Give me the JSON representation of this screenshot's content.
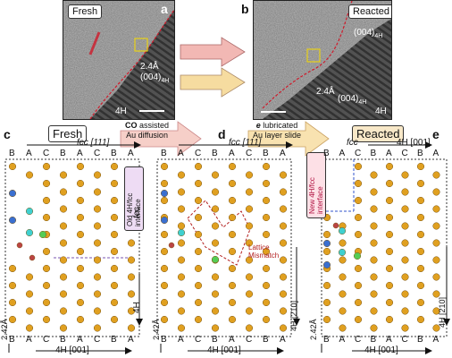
{
  "panel_letters": {
    "a": "a",
    "b": "b",
    "c": "c",
    "d": "d",
    "e": "e"
  },
  "tem_a": {
    "badge": "Fresh",
    "spacing": "2.4Å",
    "plane": "(004)",
    "plane_sub": "4H",
    "phase": "4H"
  },
  "tem_b": {
    "badge": "Reacted",
    "plane_top": "(004)",
    "plane_top_sub": "4H",
    "spacing": "2.4Å",
    "plane": "(004)",
    "plane_sub": "4H",
    "phase": "4H"
  },
  "process": {
    "step1_bold": "CO",
    "step1_rest": " assisted",
    "step1_line2": "Au diffusion",
    "step2_bold": "e",
    "step2_rest": " lubricated",
    "step2_line2": "Au layer slide"
  },
  "panel_c": {
    "title": "Fresh",
    "top_axis": "fcc [111]",
    "stacking_top": [
      "B",
      "A",
      "C",
      "B",
      "A",
      "C",
      "B",
      "A"
    ],
    "stacking_bottom": [
      "B",
      "A",
      "C",
      "B",
      "A",
      "C",
      "B",
      "A"
    ],
    "spacing": "2.42Å",
    "bottom_axis": "4H [001]",
    "interface_label": "Old 4H/fcc interface",
    "side_fcc": "fcc",
    "side_4h": "4H"
  },
  "panel_d": {
    "top_axis": "fcc [111]",
    "stacking_top": [
      "B",
      "A",
      "C",
      "B",
      "A",
      "C",
      "B",
      "A"
    ],
    "stacking_bottom": [
      "B",
      "A",
      "C",
      "B",
      "A",
      "C",
      "B",
      "A"
    ],
    "spacing": "2.42Å",
    "bottom_axis": "4H [001]",
    "mismatch": "Lattice Mismatch",
    "side_axis": "4H [210]"
  },
  "panel_e": {
    "title": "Reacted",
    "top_axis": "4H [001]",
    "top_fcc": "fcc",
    "stacking_top": [
      "B",
      "A",
      "C",
      "B",
      "A",
      "C",
      "B",
      "A"
    ],
    "stacking_bottom": [
      "B",
      "A",
      "C",
      "B",
      "A",
      "C",
      "B",
      "A"
    ],
    "spacing": "2.42Å",
    "bottom_axis": "4H [001]",
    "interface_label": "New 4H/fcc interface",
    "side_axis": "4H [210]"
  },
  "colors": {
    "gold": "#e0a020",
    "red_line": "#cc1122",
    "blue_atom": "#3a6fd0",
    "cyan_atom": "#3fd0d0",
    "green_atom": "#55cc55"
  }
}
